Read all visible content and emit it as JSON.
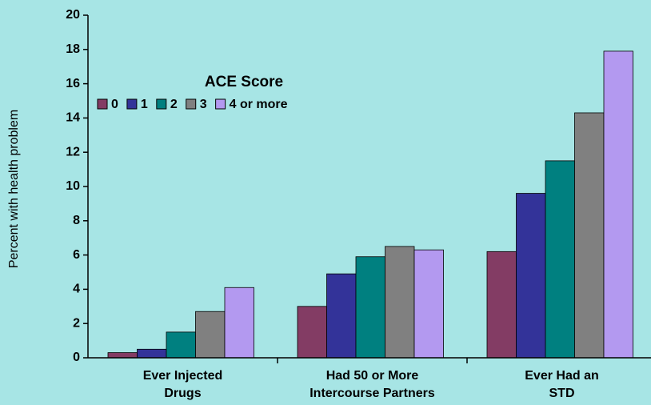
{
  "chart_data": {
    "type": "bar",
    "y_label": "Percent with health problem",
    "categories": [
      [
        "Ever Injected",
        "Drugs"
      ],
      [
        "Had 50 or More",
        "Intercourse Partners"
      ],
      [
        "Ever Had an",
        "STD"
      ]
    ],
    "legend_title": "ACE Score",
    "series": [
      {
        "name": "0",
        "color": "#833c64",
        "values": [
          0.3,
          3.0,
          6.2
        ]
      },
      {
        "name": "1",
        "color": "#333399",
        "values": [
          0.5,
          4.9,
          9.6
        ]
      },
      {
        "name": "2",
        "color": "#008080",
        "values": [
          1.5,
          5.9,
          11.5
        ]
      },
      {
        "name": "3",
        "color": "#808080",
        "values": [
          2.7,
          6.5,
          14.3
        ]
      },
      {
        "name": "4 or more",
        "color": "#b399f0",
        "values": [
          4.1,
          6.3,
          17.9
        ]
      }
    ],
    "ylim": [
      0,
      20
    ],
    "yticks": [
      0,
      2,
      4,
      6,
      8,
      10,
      12,
      14,
      16,
      18,
      20
    ]
  }
}
